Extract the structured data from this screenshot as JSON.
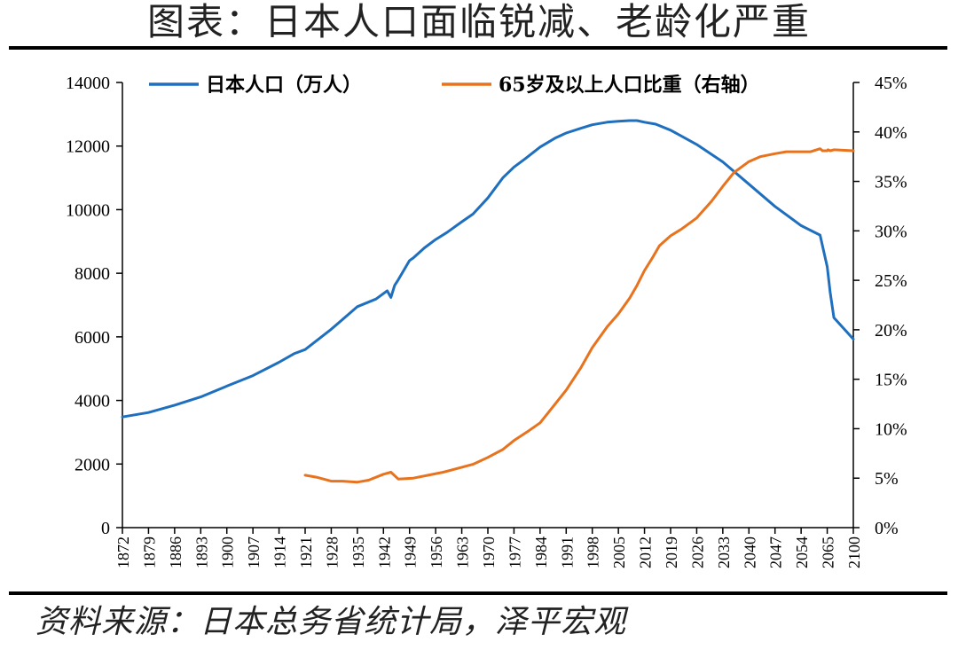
{
  "title": "图表：日本人口面临锐减、老龄化严重",
  "source": "资料来源：日本总务省统计局，泽平宏观",
  "colors": {
    "population": "#1f6fbf",
    "aged_share": "#e8731e",
    "axis": "#000000"
  },
  "chart_data": {
    "type": "line",
    "legend_position": "top",
    "grid": false,
    "left_axis": {
      "ylim": [
        0,
        14000
      ],
      "ticks": [
        "0",
        "2000",
        "4000",
        "6000",
        "8000",
        "10000",
        "12000",
        "14000"
      ]
    },
    "right_axis": {
      "ylim": [
        0,
        45
      ],
      "ticks": [
        "0%",
        "5%",
        "10%",
        "15%",
        "20%",
        "25%",
        "30%",
        "35%",
        "40%",
        "45%"
      ]
    },
    "x_tick_labels": [
      "1872",
      "1879",
      "1886",
      "1893",
      "1900",
      "1907",
      "1914",
      "1921",
      "1928",
      "1935",
      "1942",
      "1949",
      "1956",
      "1963",
      "1970",
      "1977",
      "1984",
      "1991",
      "1998",
      "2005",
      "2012",
      "2019",
      "2026",
      "2033",
      "2040",
      "2047",
      "2054",
      "2065",
      "2100"
    ],
    "series": [
      {
        "name": "日本人口（万人）",
        "axis": "left",
        "x": [
          1872,
          1879,
          1886,
          1893,
          1900,
          1907,
          1914,
          1918,
          1921,
          1928,
          1935,
          1940,
          1943,
          1944,
          1945,
          1946,
          1949,
          1950,
          1953,
          1956,
          1959,
          1963,
          1966,
          1970,
          1974,
          1977,
          1980,
          1984,
          1988,
          1991,
          1995,
          1998,
          2002,
          2005,
          2008,
          2010,
          2012,
          2015,
          2019,
          2026,
          2033,
          2040,
          2047,
          2054,
          2062,
          2065,
          2069,
          2074,
          2100
        ],
        "values": [
          3480,
          3620,
          3850,
          4110,
          4450,
          4780,
          5200,
          5470,
          5600,
          6240,
          6950,
          7190,
          7450,
          7240,
          7620,
          7800,
          8400,
          8480,
          8800,
          9060,
          9280,
          9620,
          9860,
          10370,
          11000,
          11340,
          11600,
          11970,
          12250,
          12410,
          12560,
          12670,
          12750,
          12780,
          12800,
          12800,
          12750,
          12690,
          12500,
          12050,
          11500,
          10800,
          10100,
          9500,
          9200,
          8200,
          7400,
          6600,
          5930
        ]
      },
      {
        "name": "65岁及以上人口比重（右轴）",
        "axis": "right",
        "x": [
          1921,
          1924,
          1928,
          1931,
          1935,
          1938,
          1942,
          1944,
          1946,
          1950,
          1954,
          1958,
          1962,
          1966,
          1970,
          1974,
          1977,
          1981,
          1984,
          1987,
          1991,
          1995,
          1998,
          2002,
          2005,
          2008,
          2010,
          2012,
          2014,
          2016,
          2019,
          2022,
          2026,
          2030,
          2033,
          2036,
          2040,
          2043,
          2047,
          2050,
          2054,
          2058,
          2062,
          2063,
          2065,
          2066,
          2069,
          2074,
          2100
        ],
        "values": [
          5.3,
          5.1,
          4.7,
          4.7,
          4.6,
          4.8,
          5.4,
          5.6,
          4.9,
          5.0,
          5.3,
          5.6,
          6.0,
          6.4,
          7.1,
          7.9,
          8.8,
          9.8,
          10.6,
          12.0,
          13.9,
          16.2,
          18.2,
          20.3,
          21.6,
          23.2,
          24.5,
          26.0,
          27.2,
          28.5,
          29.5,
          30.2,
          31.3,
          33.0,
          34.5,
          35.9,
          37.0,
          37.5,
          37.8,
          38.0,
          38.0,
          38.0,
          38.3,
          38.1,
          38.1,
          38.2,
          38.1,
          38.2,
          38.1
        ]
      }
    ]
  }
}
